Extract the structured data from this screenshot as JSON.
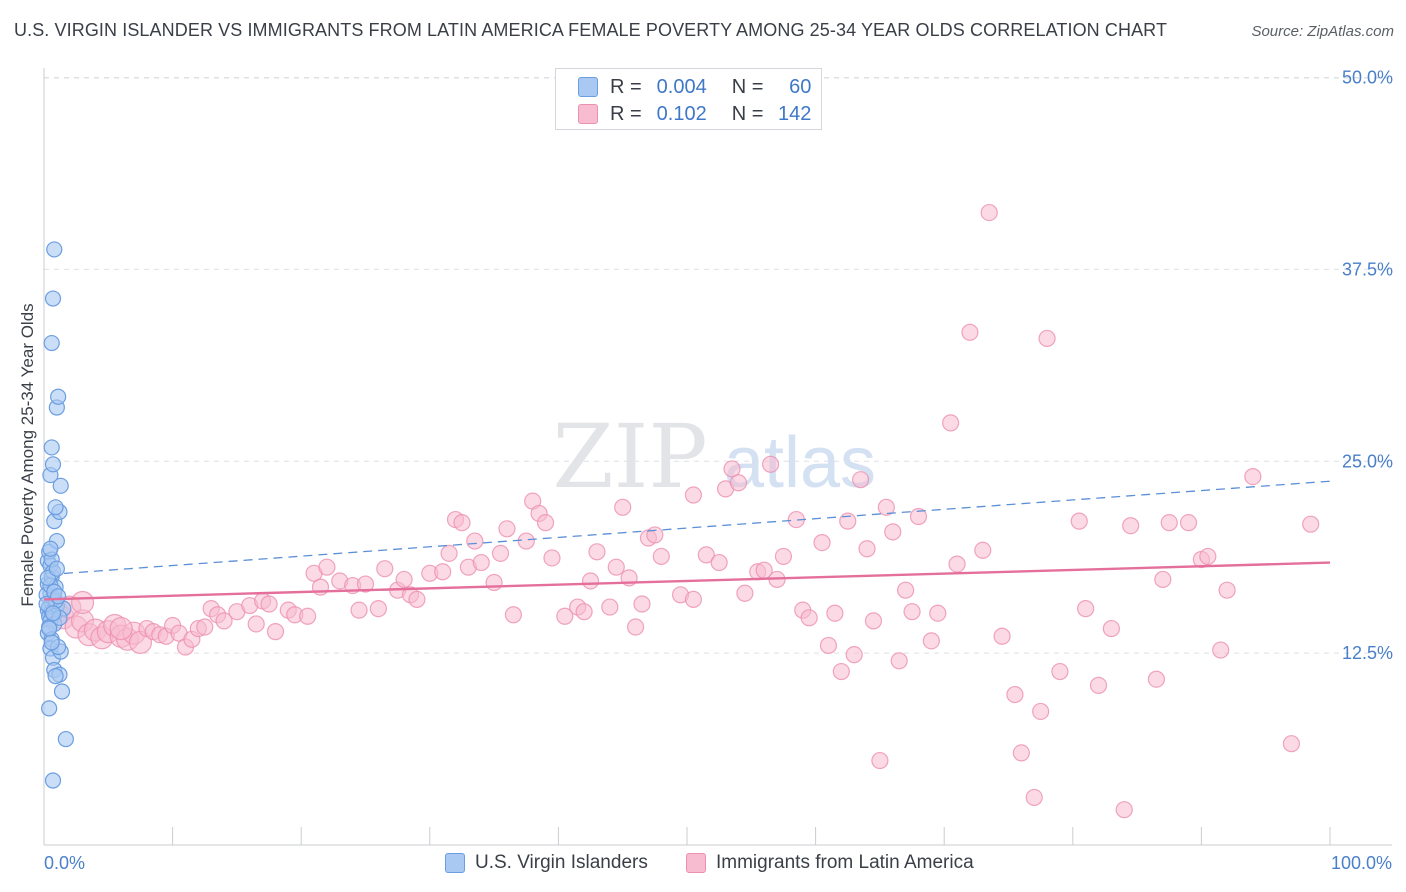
{
  "title": "U.S. VIRGIN ISLANDER VS IMMIGRANTS FROM LATIN AMERICA FEMALE POVERTY AMONG 25-34 YEAR OLDS CORRELATION CHART",
  "source": "Source: ZipAtlas.com",
  "watermark": {
    "zip": "ZIP",
    "atlas": "atlas"
  },
  "stats_box": {
    "rows": [
      {
        "r_label": "R =",
        "r_value": "0.004",
        "n_label": "N =",
        "n_value": "60",
        "color": "#8fb6ec"
      },
      {
        "r_label": "R =",
        "r_value": "0.102",
        "n_label": "N =",
        "n_value": "142",
        "color": "#f4aac3"
      }
    ]
  },
  "bottom_legend": [
    {
      "label": "U.S. Virgin Islanders",
      "color": "#8fb6ec"
    },
    {
      "label": "Immigrants from Latin America",
      "color": "#f4aac3"
    }
  ],
  "chart_data": {
    "type": "scatter",
    "title": "U.S. VIRGIN ISLANDER VS IMMIGRANTS FROM LATIN AMERICA FEMALE POVERTY AMONG 25-34 YEAR OLDS CORRELATION CHART",
    "xlabel": "",
    "ylabel": "Female Poverty Among 25-34 Year Olds",
    "xlim": [
      0,
      100
    ],
    "ylim": [
      0,
      50
    ],
    "x_tick_labels": [
      "0.0%",
      "100.0%"
    ],
    "y_ticks": [
      12.5,
      25.0,
      37.5,
      50.0
    ],
    "y_tick_labels": [
      "12.5%",
      "25.0%",
      "37.5%",
      "50.0%"
    ],
    "grid": true,
    "legend": "bottom",
    "colors": {
      "blue_fill": "#a9c8f2",
      "blue_stroke": "#6b9ee0",
      "pink_fill": "#f7bcd0",
      "pink_stroke": "#ec8fb0",
      "blue_line": "#5b8fd6",
      "pink_line": "#e46f9a"
    },
    "series": [
      {
        "name": "U.S. Virgin Islanders",
        "color": "#8fb6ec",
        "trend": {
          "x": [
            0,
            100
          ],
          "y": [
            17.6,
            23.7
          ],
          "style": "dashed"
        },
        "points": [
          [
            0.3,
            15.3
          ],
          [
            0.4,
            14.9
          ],
          [
            0.5,
            16.4
          ],
          [
            0.6,
            15.8
          ],
          [
            0.3,
            17.0
          ],
          [
            0.7,
            16.1
          ],
          [
            0.4,
            15.5
          ],
          [
            0.8,
            15.0
          ],
          [
            0.5,
            14.6
          ],
          [
            0.6,
            17.5
          ],
          [
            0.3,
            18.5
          ],
          [
            0.9,
            16.8
          ],
          [
            0.4,
            19.1
          ],
          [
            0.5,
            18.2
          ],
          [
            0.7,
            17.8
          ],
          [
            0.2,
            16.3
          ],
          [
            0.6,
            15.2
          ],
          [
            0.8,
            14.4
          ],
          [
            1.0,
            15.6
          ],
          [
            0.3,
            13.8
          ],
          [
            0.4,
            14.2
          ],
          [
            0.6,
            13.4
          ],
          [
            0.5,
            12.8
          ],
          [
            0.7,
            12.2
          ],
          [
            0.8,
            11.4
          ],
          [
            1.2,
            11.1
          ],
          [
            0.9,
            11.0
          ],
          [
            1.3,
            12.6
          ],
          [
            1.1,
            12.9
          ],
          [
            0.6,
            13.2
          ],
          [
            1.0,
            19.8
          ],
          [
            0.8,
            21.1
          ],
          [
            1.2,
            21.7
          ],
          [
            0.9,
            22.0
          ],
          [
            1.3,
            23.4
          ],
          [
            0.5,
            24.1
          ],
          [
            0.7,
            24.8
          ],
          [
            0.6,
            25.9
          ],
          [
            1.0,
            28.5
          ],
          [
            1.1,
            29.2
          ],
          [
            0.6,
            32.7
          ],
          [
            0.7,
            35.6
          ],
          [
            0.8,
            38.8
          ],
          [
            0.4,
            8.9
          ],
          [
            1.4,
            10.0
          ],
          [
            1.7,
            6.9
          ],
          [
            0.7,
            4.2
          ],
          [
            1.5,
            15.4
          ],
          [
            0.5,
            16.9
          ],
          [
            0.9,
            15.9
          ],
          [
            1.2,
            14.8
          ],
          [
            0.3,
            17.4
          ],
          [
            0.6,
            18.6
          ],
          [
            0.2,
            15.7
          ],
          [
            0.8,
            16.5
          ],
          [
            1.1,
            16.2
          ],
          [
            0.4,
            14.1
          ],
          [
            0.7,
            15.1
          ],
          [
            1.0,
            18.0
          ],
          [
            0.5,
            19.3
          ]
        ]
      },
      {
        "name": "Immigrants from Latin America",
        "color": "#f4aac3",
        "trend": {
          "x": [
            0,
            100
          ],
          "y": [
            16.0,
            18.4
          ],
          "style": "solid"
        },
        "points": [
          [
            1.0,
            15.2
          ],
          [
            1.5,
            14.8
          ],
          [
            2.0,
            15.5
          ],
          [
            2.5,
            14.2
          ],
          [
            3.0,
            14.6
          ],
          [
            3.5,
            13.7
          ],
          [
            4.0,
            14.0
          ],
          [
            4.5,
            13.5
          ],
          [
            5.0,
            13.9
          ],
          [
            5.5,
            14.3
          ],
          [
            6.0,
            13.6
          ],
          [
            6.5,
            13.4
          ],
          [
            7.0,
            13.8
          ],
          [
            7.5,
            13.2
          ],
          [
            8.0,
            14.1
          ],
          [
            8.5,
            13.9
          ],
          [
            9.0,
            13.7
          ],
          [
            9.5,
            13.6
          ],
          [
            10.0,
            14.3
          ],
          [
            10.5,
            13.8
          ],
          [
            11.0,
            12.9
          ],
          [
            11.5,
            13.4
          ],
          [
            12.0,
            14.1
          ],
          [
            12.5,
            14.2
          ],
          [
            13.0,
            15.4
          ],
          [
            13.5,
            15.0
          ],
          [
            14.0,
            14.6
          ],
          [
            15.0,
            15.2
          ],
          [
            16.0,
            15.6
          ],
          [
            16.5,
            14.4
          ],
          [
            17.0,
            15.9
          ],
          [
            17.5,
            15.7
          ],
          [
            18.0,
            13.9
          ],
          [
            19.0,
            15.3
          ],
          [
            19.5,
            15.0
          ],
          [
            20.5,
            14.9
          ],
          [
            21.0,
            17.7
          ],
          [
            21.5,
            16.8
          ],
          [
            22.0,
            18.1
          ],
          [
            23.0,
            17.2
          ],
          [
            24.0,
            16.9
          ],
          [
            24.5,
            15.3
          ],
          [
            25.0,
            17.0
          ],
          [
            26.0,
            15.4
          ],
          [
            26.5,
            18.0
          ],
          [
            27.5,
            16.6
          ],
          [
            28.0,
            17.3
          ],
          [
            28.5,
            16.3
          ],
          [
            29.0,
            16.0
          ],
          [
            30.0,
            17.7
          ],
          [
            31.0,
            17.8
          ],
          [
            31.5,
            19.0
          ],
          [
            32.0,
            21.2
          ],
          [
            32.5,
            21.0
          ],
          [
            33.0,
            18.1
          ],
          [
            33.5,
            19.8
          ],
          [
            34.0,
            18.4
          ],
          [
            35.0,
            17.1
          ],
          [
            35.5,
            19.0
          ],
          [
            36.0,
            20.6
          ],
          [
            36.5,
            15.0
          ],
          [
            37.5,
            19.8
          ],
          [
            38.0,
            22.4
          ],
          [
            38.5,
            21.6
          ],
          [
            39.0,
            21.0
          ],
          [
            39.5,
            18.7
          ],
          [
            40.5,
            14.9
          ],
          [
            41.5,
            15.5
          ],
          [
            42.0,
            15.2
          ],
          [
            42.5,
            17.2
          ],
          [
            43.0,
            19.1
          ],
          [
            44.0,
            15.5
          ],
          [
            44.5,
            18.1
          ],
          [
            45.0,
            22.0
          ],
          [
            45.5,
            17.4
          ],
          [
            46.0,
            14.2
          ],
          [
            46.5,
            15.7
          ],
          [
            47.0,
            20.0
          ],
          [
            47.5,
            20.2
          ],
          [
            48.0,
            18.8
          ],
          [
            49.5,
            16.3
          ],
          [
            50.5,
            22.8
          ],
          [
            50.5,
            16.0
          ],
          [
            51.5,
            18.9
          ],
          [
            52.5,
            18.4
          ],
          [
            53.0,
            23.2
          ],
          [
            53.5,
            24.5
          ],
          [
            54.0,
            23.6
          ],
          [
            54.5,
            16.4
          ],
          [
            55.5,
            17.8
          ],
          [
            56.0,
            17.9
          ],
          [
            56.5,
            24.8
          ],
          [
            57.0,
            17.3
          ],
          [
            57.5,
            18.8
          ],
          [
            58.5,
            21.2
          ],
          [
            59.0,
            15.3
          ],
          [
            59.5,
            14.8
          ],
          [
            60.5,
            19.7
          ],
          [
            61.0,
            13.0
          ],
          [
            61.5,
            15.1
          ],
          [
            62.0,
            11.3
          ],
          [
            62.5,
            21.1
          ],
          [
            63.0,
            12.4
          ],
          [
            63.5,
            23.8
          ],
          [
            64.0,
            19.3
          ],
          [
            64.5,
            14.6
          ],
          [
            65.0,
            5.5
          ],
          [
            65.5,
            22.0
          ],
          [
            66.0,
            20.4
          ],
          [
            66.5,
            12.0
          ],
          [
            67.0,
            16.6
          ],
          [
            67.5,
            15.2
          ],
          [
            68.0,
            21.4
          ],
          [
            69.0,
            13.3
          ],
          [
            69.5,
            15.1
          ],
          [
            70.5,
            27.5
          ],
          [
            71.0,
            18.3
          ],
          [
            72.0,
            33.4
          ],
          [
            73.0,
            19.2
          ],
          [
            73.5,
            41.2
          ],
          [
            74.5,
            13.6
          ],
          [
            75.5,
            9.8
          ],
          [
            76.0,
            6.0
          ],
          [
            77.0,
            3.1
          ],
          [
            77.5,
            8.7
          ],
          [
            78.0,
            33.0
          ],
          [
            79.0,
            11.3
          ],
          [
            80.5,
            21.1
          ],
          [
            81.0,
            15.4
          ],
          [
            82.0,
            10.4
          ],
          [
            83.0,
            14.1
          ],
          [
            84.0,
            2.3
          ],
          [
            84.5,
            20.8
          ],
          [
            86.5,
            10.8
          ],
          [
            87.0,
            17.3
          ],
          [
            87.5,
            21.0
          ],
          [
            89.0,
            21.0
          ],
          [
            90.0,
            18.6
          ],
          [
            90.5,
            18.8
          ],
          [
            91.5,
            12.7
          ],
          [
            92.0,
            16.6
          ],
          [
            94.0,
            24.0
          ],
          [
            97.0,
            6.6
          ],
          [
            98.5,
            20.9
          ],
          [
            6.0,
            14.1
          ],
          [
            3.0,
            15.8
          ]
        ]
      }
    ]
  }
}
